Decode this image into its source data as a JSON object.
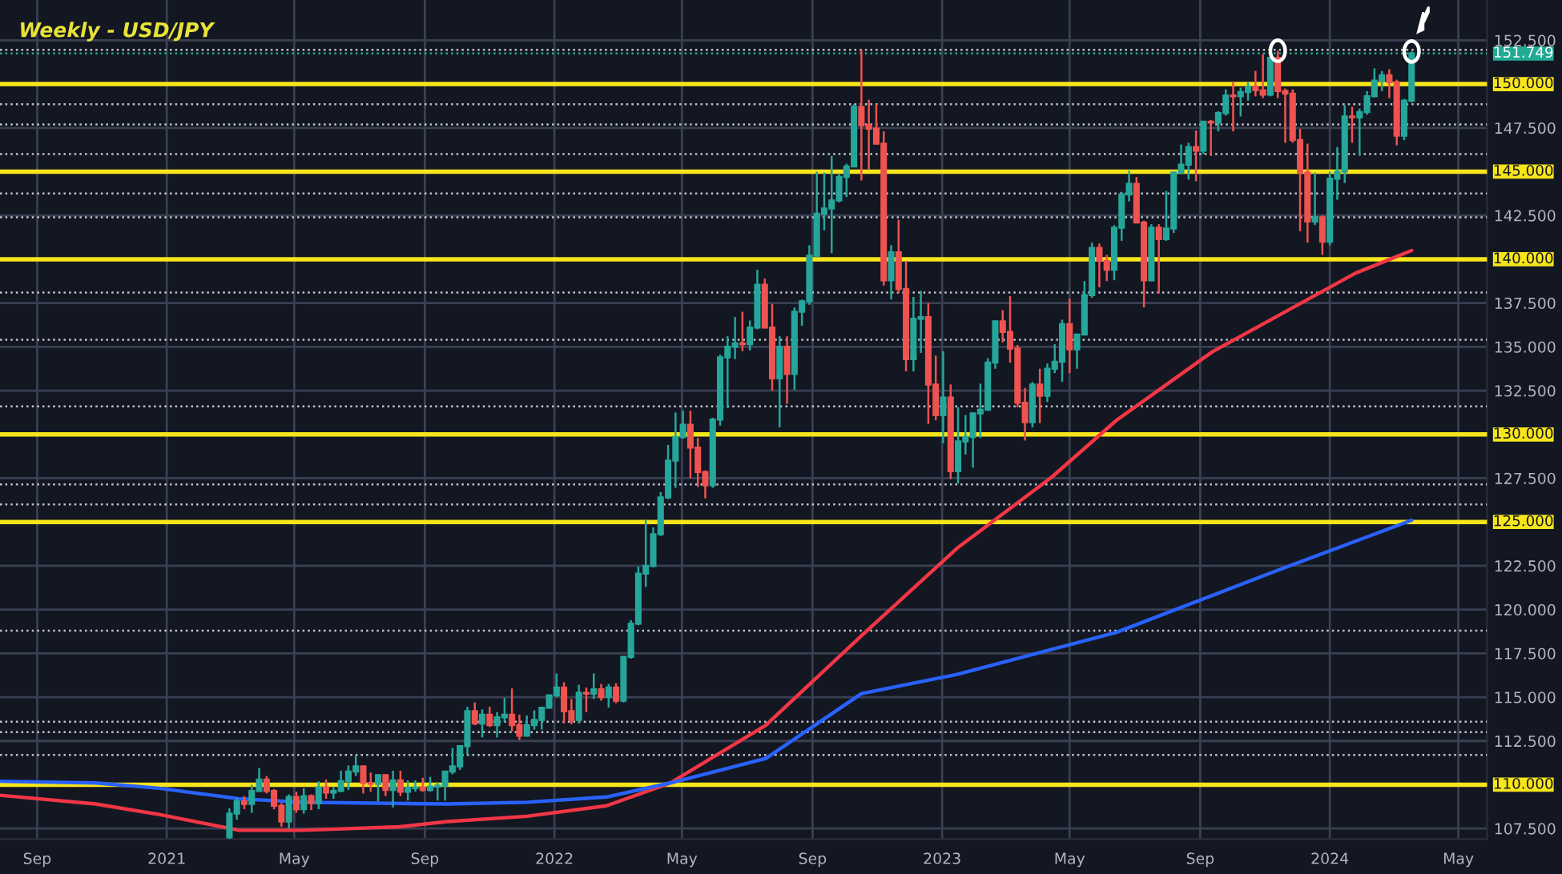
{
  "chart_data": {
    "type": "candlestick",
    "title": "Weekly - USD/JPY",
    "colors": [
      "#26a69a",
      "#26a69a",
      "#ef5350",
      "#26a69a",
      "#26a69a",
      "#ef5350",
      "#ef5350",
      "#ef5350",
      "#26a69a",
      "#ef5350",
      "#26a69a",
      "#ef5350",
      "#26a69a",
      "#ef5350",
      "#26a69a",
      "#26a69a",
      "#26a69a",
      "#26a69a",
      "#ef5350",
      "#ef5350",
      "#26a69a",
      "#ef5350",
      "#26a69a",
      "#ef5350",
      "#26a69a",
      "#26a69a",
      "#ef5350",
      "#26a69a",
      "#26a69a",
      "#26a69a",
      "#26a69a",
      "#26a69a",
      "#26a69a",
      "#ef5350",
      "#26a69a",
      "#ef5350",
      "#26a69a",
      "#26a69a",
      "#ef5350",
      "#ef5350",
      "#26a69a",
      "#26a69a",
      "#26a69a",
      "#26a69a",
      "#26a69a",
      "#ef5350",
      "#ef5350",
      "#26a69a",
      "#ef5350",
      "#26a69a",
      "#ef5350",
      "#26a69a",
      "#ef5350",
      "#26a69a",
      "#26a69a",
      "#26a69a",
      "#26a69a",
      "#26a69a",
      "#26a69a",
      "#26a69a",
      "#26a69a",
      "#26a69a",
      "#ef5350",
      "#ef5350",
      "#ef5350",
      "#26a69a",
      "#26a69a",
      "#26a69a",
      "#26a69a",
      "#ef5350",
      "#26a69a",
      "#26a69a",
      "#ef5350",
      "#ef5350",
      "#26a69a",
      "#ef5350",
      "#26a69a",
      "#26a69a",
      "#26a69a",
      "#26a69a",
      "#26a69a",
      "#26a69a",
      "#26a69a",
      "#26a69a",
      "#26a69a",
      "#ef5350",
      "#ef5350",
      "#ef5350",
      "#ef5350",
      "#26a69a",
      "#ef5350",
      "#ef5350",
      "#26a69a",
      "#26a69a",
      "#ef5350",
      "#ef5350",
      "#26a69a",
      "#ef5350",
      "#26a69a",
      "#26a69a",
      "#26a69a",
      "#26a69a",
      "#26a69a",
      "#26a69a",
      "#ef5350",
      "#ef5350",
      "#ef5350",
      "#ef5350",
      "#26a69a",
      "#ef5350",
      "#26a69a",
      "#26a69a",
      "#26a69a",
      "#ef5350",
      "#26a69a",
      "#26a69a",
      "#26a69a",
      "#ef5350",
      "#ef5350",
      "#26a69a",
      "#26a69a",
      "#26a69a",
      "#ef5350",
      "#ef5350",
      "#26a69a",
      "#ef5350",
      "#26a69a",
      "#26a69a",
      "#26a69a",
      "#26a69a",
      "#ef5350",
      "#26a69a",
      "#ef5350",
      "#26a69a",
      "#26a69a",
      "#ef5350",
      "#26a69a",
      "#26a69a",
      "#ef5350",
      "#ef5350",
      "#26a69a",
      "#ef5350",
      "#ef5350",
      "#ef5350",
      "#ef5350",
      "#ef5350",
      "#26a69a",
      "#ef5350",
      "#26a69a",
      "#26a69a",
      "#26a69a",
      "#ef5350",
      "#26a69a",
      "#26a69a",
      "#26a69a",
      "#26a69a",
      "#ef5350",
      "#ef5350",
      "#26a69a",
      "#26a69a"
    ],
    "x": [
      "2021-03-01",
      "2021-03-08",
      "2021-03-15",
      "2021-03-22",
      "2021-03-29",
      "2021-04-05",
      "2021-04-12",
      "2021-04-19",
      "2021-04-26",
      "2021-05-03",
      "2021-05-10",
      "2021-05-17",
      "2021-05-24",
      "2021-05-31",
      "2021-06-07",
      "2021-06-14",
      "2021-06-21",
      "2021-06-28",
      "2021-07-05",
      "2021-07-12",
      "2021-07-19",
      "2021-07-26",
      "2021-08-02",
      "2021-08-09",
      "2021-08-16",
      "2021-08-23",
      "2021-08-30",
      "2021-09-06",
      "2021-09-13",
      "2021-09-20",
      "2021-09-27",
      "2021-10-04",
      "2021-10-11",
      "2021-10-18",
      "2021-10-25",
      "2021-11-01",
      "2021-11-08",
      "2021-11-15",
      "2021-11-22",
      "2021-11-29",
      "2021-12-06",
      "2021-12-13",
      "2021-12-20",
      "2021-12-27",
      "2022-01-03",
      "2022-01-10",
      "2022-01-17",
      "2022-01-24",
      "2022-01-31",
      "2022-02-07",
      "2022-02-14",
      "2022-02-21",
      "2022-02-28",
      "2022-03-07",
      "2022-03-14",
      "2022-03-21",
      "2022-03-28",
      "2022-04-04",
      "2022-04-11",
      "2022-04-18",
      "2022-04-25",
      "2022-05-02",
      "2022-05-09",
      "2022-05-16",
      "2022-05-23",
      "2022-05-30",
      "2022-06-06",
      "2022-06-13",
      "2022-06-20",
      "2022-06-27",
      "2022-07-04",
      "2022-07-11",
      "2022-07-18",
      "2022-07-25",
      "2022-08-01",
      "2022-08-08",
      "2022-08-15",
      "2022-08-22",
      "2022-08-29",
      "2022-09-05",
      "2022-09-12",
      "2022-09-19",
      "2022-09-26",
      "2022-10-03",
      "2022-10-10",
      "2022-10-17",
      "2022-10-24",
      "2022-10-31",
      "2022-11-07",
      "2022-11-14",
      "2022-11-21",
      "2022-11-28",
      "2022-12-05",
      "2022-12-12",
      "2022-12-19",
      "2022-12-26",
      "2023-01-02",
      "2023-01-09",
      "2023-01-16",
      "2023-01-23",
      "2023-01-30",
      "2023-02-06",
      "2023-02-13",
      "2023-02-20",
      "2023-02-27",
      "2023-03-06",
      "2023-03-13",
      "2023-03-20",
      "2023-03-27",
      "2023-04-03",
      "2023-04-10",
      "2023-04-17",
      "2023-04-24",
      "2023-05-01",
      "2023-05-08",
      "2023-05-15",
      "2023-05-22",
      "2023-05-29",
      "2023-06-05",
      "2023-06-12",
      "2023-06-19",
      "2023-06-26",
      "2023-07-03",
      "2023-07-10",
      "2023-07-17",
      "2023-07-24",
      "2023-07-31",
      "2023-08-07",
      "2023-08-14",
      "2023-08-21",
      "2023-08-28",
      "2023-09-04",
      "2023-09-11",
      "2023-09-18",
      "2023-09-25",
      "2023-10-02",
      "2023-10-09",
      "2023-10-16",
      "2023-10-23",
      "2023-10-30",
      "2023-11-06",
      "2023-11-13",
      "2023-11-20",
      "2023-11-27",
      "2023-12-04",
      "2023-12-11",
      "2023-12-18",
      "2023-12-25",
      "2024-01-01",
      "2024-01-08",
      "2024-01-15",
      "2024-01-22",
      "2024-01-29",
      "2024-02-05",
      "2024-02-12",
      "2024-02-19",
      "2024-02-26",
      "2024-03-04",
      "2024-03-11",
      "2024-03-18"
    ],
    "ohlc": [
      [
        107.0,
        108.65,
        106.9,
        108.35
      ],
      [
        108.35,
        109.25,
        108.0,
        109.05
      ],
      [
        109.05,
        109.35,
        108.6,
        108.9
      ],
      [
        108.9,
        110.0,
        108.4,
        109.65
      ],
      [
        109.65,
        110.95,
        109.6,
        110.3
      ],
      [
        110.3,
        110.5,
        109.5,
        109.65
      ],
      [
        109.65,
        109.75,
        108.6,
        108.8
      ],
      [
        108.8,
        108.95,
        107.6,
        107.9
      ],
      [
        107.9,
        109.45,
        107.5,
        109.3
      ],
      [
        109.3,
        109.6,
        108.4,
        108.6
      ],
      [
        108.6,
        109.8,
        108.35,
        109.35
      ],
      [
        109.35,
        109.45,
        108.55,
        108.95
      ],
      [
        108.95,
        110.2,
        108.6,
        109.85
      ],
      [
        109.85,
        110.3,
        109.2,
        109.55
      ],
      [
        109.55,
        109.85,
        109.2,
        109.65
      ],
      [
        109.65,
        110.8,
        109.6,
        110.2
      ],
      [
        110.2,
        111.1,
        109.7,
        110.75
      ],
      [
        110.75,
        111.65,
        110.5,
        111.05
      ],
      [
        111.05,
        111.05,
        109.5,
        110.1
      ],
      [
        110.1,
        110.7,
        109.6,
        110.05
      ],
      [
        110.05,
        110.6,
        109.05,
        110.55
      ],
      [
        110.55,
        110.6,
        109.35,
        109.7
      ],
      [
        109.7,
        110.8,
        108.7,
        110.25
      ],
      [
        110.25,
        110.8,
        109.35,
        109.6
      ],
      [
        109.6,
        110.25,
        109.1,
        109.8
      ],
      [
        109.8,
        110.25,
        109.6,
        109.85
      ],
      [
        109.85,
        110.4,
        109.6,
        109.7
      ],
      [
        109.7,
        110.45,
        109.6,
        109.9
      ],
      [
        109.9,
        110.15,
        109.1,
        109.95
      ],
      [
        109.95,
        110.8,
        109.1,
        110.75
      ],
      [
        110.75,
        112.1,
        110.6,
        111.05
      ],
      [
        111.05,
        112.25,
        110.85,
        112.2
      ],
      [
        112.2,
        114.45,
        111.7,
        114.2
      ],
      [
        114.2,
        114.7,
        113.4,
        113.5
      ],
      [
        113.5,
        114.3,
        112.7,
        114.0
      ],
      [
        114.0,
        114.45,
        113.3,
        113.4
      ],
      [
        113.4,
        114.15,
        112.7,
        113.85
      ],
      [
        113.85,
        114.95,
        113.6,
        114.0
      ],
      [
        114.0,
        115.5,
        113.05,
        113.4
      ],
      [
        113.4,
        114.0,
        112.55,
        112.8
      ],
      [
        112.8,
        113.95,
        112.75,
        113.4
      ],
      [
        113.4,
        114.25,
        113.15,
        113.7
      ],
      [
        113.7,
        114.45,
        113.15,
        114.4
      ],
      [
        114.4,
        115.1,
        114.35,
        115.1
      ],
      [
        115.1,
        116.35,
        115.0,
        115.55
      ],
      [
        115.55,
        115.85,
        113.5,
        114.2
      ],
      [
        114.2,
        114.9,
        113.45,
        113.7
      ],
      [
        113.7,
        115.7,
        113.5,
        115.25
      ],
      [
        115.25,
        115.55,
        114.15,
        115.2
      ],
      [
        115.2,
        116.35,
        114.9,
        115.45
      ],
      [
        115.45,
        115.75,
        114.8,
        115.0
      ],
      [
        115.0,
        115.75,
        114.4,
        115.55
      ],
      [
        115.55,
        115.8,
        114.65,
        114.8
      ],
      [
        114.8,
        117.35,
        114.7,
        117.3
      ],
      [
        117.3,
        119.4,
        117.2,
        119.2
      ],
      [
        119.2,
        122.45,
        119.1,
        122.05
      ],
      [
        122.05,
        125.1,
        121.3,
        122.5
      ],
      [
        122.5,
        124.7,
        122.4,
        124.3
      ],
      [
        124.3,
        126.7,
        124.2,
        126.4
      ],
      [
        126.4,
        129.4,
        126.3,
        128.5
      ],
      [
        128.5,
        131.25,
        126.95,
        129.85
      ],
      [
        129.85,
        131.35,
        129.75,
        130.55
      ],
      [
        130.55,
        131.35,
        127.5,
        129.25
      ],
      [
        129.25,
        129.8,
        127.0,
        127.85
      ],
      [
        127.85,
        127.95,
        126.35,
        127.1
      ],
      [
        127.1,
        130.95,
        126.95,
        130.85
      ],
      [
        130.85,
        134.55,
        130.5,
        134.4
      ],
      [
        134.4,
        135.6,
        131.5,
        135.0
      ],
      [
        135.0,
        136.7,
        134.3,
        135.2
      ],
      [
        135.2,
        137.0,
        134.75,
        135.15
      ],
      [
        135.15,
        136.5,
        134.8,
        136.1
      ],
      [
        136.1,
        139.4,
        136.0,
        138.55
      ],
      [
        138.55,
        138.9,
        136.05,
        136.1
      ],
      [
        136.1,
        137.45,
        132.5,
        133.2
      ],
      [
        133.2,
        135.6,
        130.4,
        135.0
      ],
      [
        135.0,
        135.6,
        131.75,
        133.45
      ],
      [
        133.45,
        137.25,
        132.55,
        137.0
      ],
      [
        137.0,
        137.7,
        136.2,
        137.6
      ],
      [
        137.6,
        140.8,
        137.4,
        140.2
      ],
      [
        140.2,
        145.0,
        140.1,
        142.6
      ],
      [
        142.6,
        144.95,
        141.65,
        142.9
      ],
      [
        142.9,
        145.9,
        140.35,
        143.35
      ],
      [
        143.35,
        144.9,
        143.25,
        144.7
      ],
      [
        144.7,
        145.45,
        143.55,
        145.3
      ],
      [
        145.3,
        148.85,
        145.25,
        148.7
      ],
      [
        148.7,
        151.95,
        144.5,
        147.65
      ],
      [
        147.65,
        149.1,
        145.1,
        147.45
      ],
      [
        147.45,
        148.85,
        146.55,
        146.6
      ],
      [
        146.6,
        147.3,
        138.5,
        138.8
      ],
      [
        138.8,
        140.8,
        137.7,
        140.4
      ],
      [
        140.4,
        142.25,
        138.05,
        138.3
      ],
      [
        138.3,
        139.9,
        133.6,
        134.3
      ],
      [
        134.3,
        137.85,
        133.6,
        136.6
      ],
      [
        136.6,
        138.2,
        134.65,
        136.7
      ],
      [
        136.7,
        137.5,
        130.6,
        132.85
      ],
      [
        132.85,
        134.5,
        130.8,
        131.1
      ],
      [
        131.1,
        134.75,
        129.5,
        132.1
      ],
      [
        132.1,
        132.85,
        127.45,
        127.9
      ],
      [
        127.9,
        131.55,
        127.2,
        129.6
      ],
      [
        129.6,
        131.1,
        128.85,
        129.85
      ],
      [
        129.85,
        131.25,
        128.1,
        131.2
      ],
      [
        131.2,
        132.9,
        129.8,
        131.4
      ],
      [
        131.4,
        134.35,
        131.35,
        134.1
      ],
      [
        134.1,
        136.5,
        133.75,
        136.45
      ],
      [
        136.45,
        137.1,
        135.25,
        135.85
      ],
      [
        135.85,
        137.9,
        134.1,
        134.9
      ],
      [
        134.9,
        135.1,
        131.55,
        131.8
      ],
      [
        131.8,
        132.65,
        129.65,
        130.7
      ],
      [
        130.7,
        133.0,
        130.4,
        132.85
      ],
      [
        132.85,
        133.75,
        130.65,
        132.2
      ],
      [
        132.2,
        134.05,
        131.85,
        133.75
      ],
      [
        133.75,
        135.15,
        133.5,
        134.15
      ],
      [
        134.15,
        136.55,
        133.0,
        136.3
      ],
      [
        136.3,
        137.75,
        133.5,
        134.85
      ],
      [
        134.85,
        135.75,
        133.75,
        135.7
      ],
      [
        135.7,
        138.75,
        135.65,
        137.95
      ],
      [
        137.95,
        140.95,
        137.8,
        140.65
      ],
      [
        140.65,
        140.9,
        138.4,
        139.9
      ],
      [
        139.9,
        140.25,
        138.75,
        139.4
      ],
      [
        139.4,
        141.95,
        138.8,
        141.8
      ],
      [
        141.8,
        143.85,
        141.05,
        143.7
      ],
      [
        143.7,
        145.05,
        143.3,
        144.3
      ],
      [
        144.3,
        144.7,
        142.05,
        142.1
      ],
      [
        142.1,
        142.2,
        137.25,
        138.8
      ],
      [
        138.8,
        142.0,
        138.75,
        141.8
      ],
      [
        141.8,
        142.0,
        138.05,
        141.15
      ],
      [
        141.15,
        143.9,
        141.05,
        141.75
      ],
      [
        141.75,
        145.0,
        141.5,
        144.95
      ],
      [
        144.95,
        146.55,
        144.85,
        145.4
      ],
      [
        145.4,
        146.65,
        144.55,
        146.4
      ],
      [
        146.4,
        147.35,
        144.45,
        146.2
      ],
      [
        146.2,
        147.9,
        146.0,
        147.85
      ],
      [
        147.85,
        147.95,
        145.9,
        147.8
      ],
      [
        147.8,
        148.45,
        147.3,
        148.35
      ],
      [
        148.35,
        149.7,
        148.2,
        149.35
      ],
      [
        149.35,
        150.15,
        147.3,
        149.3
      ],
      [
        149.3,
        149.8,
        148.15,
        149.55
      ],
      [
        149.55,
        150.1,
        149.05,
        149.85
      ],
      [
        149.85,
        150.75,
        149.3,
        149.65
      ],
      [
        149.65,
        151.7,
        149.2,
        149.4
      ],
      [
        149.4,
        151.6,
        149.3,
        151.5
      ],
      [
        151.5,
        151.9,
        149.2,
        149.6
      ],
      [
        149.6,
        149.75,
        146.65,
        149.45
      ],
      [
        149.45,
        149.7,
        146.65,
        146.8
      ],
      [
        146.8,
        147.45,
        141.6,
        144.95
      ],
      [
        144.95,
        146.6,
        140.95,
        142.15
      ],
      [
        142.15,
        144.95,
        141.95,
        142.4
      ],
      [
        142.4,
        142.5,
        140.25,
        141.0
      ],
      [
        141.0,
        145.0,
        140.8,
        144.6
      ],
      [
        144.6,
        146.4,
        143.4,
        145.0
      ],
      [
        145.0,
        148.8,
        144.35,
        148.15
      ],
      [
        148.15,
        148.7,
        146.65,
        148.1
      ],
      [
        148.1,
        148.6,
        145.9,
        148.4
      ],
      [
        148.4,
        149.6,
        148.25,
        149.3
      ],
      [
        149.3,
        150.9,
        149.25,
        150.2
      ],
      [
        150.2,
        150.75,
        149.6,
        150.5
      ],
      [
        150.5,
        150.85,
        149.2,
        150.1
      ],
      [
        150.1,
        150.25,
        146.5,
        147.05
      ],
      [
        147.05,
        149.15,
        146.8,
        149.05
      ],
      [
        149.05,
        151.86,
        148.95,
        151.749
      ]
    ],
    "series": [
      {
        "type": "line",
        "color": "#f23645",
        "x": [
          "2020-07-28",
          "2020-10-26",
          "2020-12-25",
          "2021-03-10",
          "2021-05-09",
          "2021-08-08",
          "2021-09-22",
          "2021-12-06",
          "2022-02-19",
          "2022-04-20",
          "2022-07-19",
          "2022-10-17",
          "2023-01-15",
          "2023-04-15",
          "2023-06-14",
          "2023-09-12",
          "2023-11-11",
          "2024-01-25",
          "2024-03-18"
        ],
        "values": [
          109.4,
          108.9,
          108.3,
          107.4,
          107.4,
          107.6,
          107.9,
          108.2,
          108.8,
          110.1,
          113.4,
          118.5,
          123.5,
          127.6,
          130.8,
          134.7,
          136.7,
          139.2,
          140.5
        ]
      },
      {
        "type": "line",
        "color": "#2962ff",
        "x": [
          "2020-07-28",
          "2020-10-26",
          "2020-12-25",
          "2021-03-10",
          "2021-05-09",
          "2021-09-22",
          "2021-12-06",
          "2022-02-19",
          "2022-04-20",
          "2022-07-19",
          "2022-10-17",
          "2023-01-15",
          "2023-06-14",
          "2023-11-11",
          "2024-03-18"
        ],
        "values": [
          110.2,
          110.1,
          109.8,
          109.2,
          109.0,
          108.9,
          109.0,
          109.3,
          110.1,
          111.5,
          115.2,
          116.3,
          118.7,
          122.2,
          125.1
        ]
      }
    ],
    "xlim": [
      "2020-07-28",
      "2024-05-28"
    ],
    "ylim": [
      106.9,
      154.8
    ],
    "xticks": [
      {
        "value": "2020-09-01",
        "label": "Sep"
      },
      {
        "value": "2021-01-01",
        "label": "2021"
      },
      {
        "value": "2021-05-01",
        "label": "May"
      },
      {
        "value": "2021-09-01",
        "label": "Sep"
      },
      {
        "value": "2022-01-01",
        "label": "2022"
      },
      {
        "value": "2022-05-01",
        "label": "May"
      },
      {
        "value": "2022-09-01",
        "label": "Sep"
      },
      {
        "value": "2023-01-01",
        "label": "2023"
      },
      {
        "value": "2023-05-01",
        "label": "May"
      },
      {
        "value": "2023-09-01",
        "label": "Sep"
      },
      {
        "value": "2024-01-01",
        "label": "2024"
      },
      {
        "value": "2024-05-01",
        "label": "May"
      }
    ],
    "yticks": [
      {
        "value": 107.5,
        "label": "107.500"
      },
      {
        "value": 112.5,
        "label": "112.500"
      },
      {
        "value": 115,
        "label": "115.000"
      },
      {
        "value": 117.5,
        "label": "117.500"
      },
      {
        "value": 120,
        "label": "120.000"
      },
      {
        "value": 122.5,
        "label": "122.500"
      },
      {
        "value": 127.5,
        "label": "127.500"
      },
      {
        "value": 132.5,
        "label": "132.500"
      },
      {
        "value": 135,
        "label": "135.000"
      },
      {
        "value": 137.5,
        "label": "137.500"
      },
      {
        "value": 142.5,
        "label": "142.500"
      },
      {
        "value": 147.5,
        "label": "147.500"
      },
      {
        "value": 152.5,
        "label": "152.500"
      }
    ],
    "grid": true,
    "ref_lines": [
      {
        "axis": "y",
        "value": 150,
        "label": "150.000",
        "color": "#f7e51b",
        "line_style": "solid"
      },
      {
        "axis": "y",
        "value": 145,
        "label": "145.000",
        "color": "#f7e51b",
        "line_style": "solid"
      },
      {
        "axis": "y",
        "value": 140,
        "label": "140.000",
        "color": "#f7e51b",
        "line_style": "solid"
      },
      {
        "axis": "y",
        "value": 130,
        "label": "130.000",
        "color": "#f7e51b",
        "line_style": "solid"
      },
      {
        "axis": "y",
        "value": 125,
        "label": "125.000",
        "color": "#f7e51b",
        "line_style": "solid"
      },
      {
        "axis": "y",
        "value": 110,
        "label": "110.000",
        "color": "#f7e51b",
        "line_style": "solid"
      },
      {
        "axis": "y",
        "value": 151.749,
        "label": "151.749",
        "color": "#22ab94",
        "line_style": "dotted"
      },
      {
        "axis": "y",
        "value": 151.95,
        "color": "#c0c3cc",
        "line_style": "dotted"
      },
      {
        "axis": "y",
        "value": 148.85,
        "color": "#c0c3cc",
        "line_style": "dotted"
      },
      {
        "axis": "y",
        "value": 147.7,
        "color": "#c0c3cc",
        "line_style": "dotted"
      },
      {
        "axis": "y",
        "value": 146.0,
        "color": "#c0c3cc",
        "line_style": "dotted"
      },
      {
        "axis": "y",
        "value": 143.75,
        "color": "#c0c3cc",
        "line_style": "dotted"
      },
      {
        "axis": "y",
        "value": 142.4,
        "color": "#c0c3cc",
        "line_style": "dotted"
      },
      {
        "axis": "y",
        "value": 138.1,
        "color": "#c0c3cc",
        "line_style": "dotted"
      },
      {
        "axis": "y",
        "value": 135.4,
        "color": "#c0c3cc",
        "line_style": "dotted"
      },
      {
        "axis": "y",
        "value": 131.6,
        "color": "#c0c3cc",
        "line_style": "dotted"
      },
      {
        "axis": "y",
        "value": 127.15,
        "color": "#c0c3cc",
        "line_style": "dotted"
      },
      {
        "axis": "y",
        "value": 126.0,
        "color": "#c0c3cc",
        "line_style": "dotted"
      },
      {
        "axis": "y",
        "value": 118.8,
        "color": "#c0c3cc",
        "line_style": "dotted"
      },
      {
        "axis": "y",
        "value": 113.6,
        "color": "#c0c3cc",
        "line_style": "dotted"
      },
      {
        "axis": "y",
        "value": 113.0,
        "color": "#c0c3cc",
        "line_style": "dotted"
      },
      {
        "axis": "y",
        "value": 111.7,
        "color": "#c0c3cc",
        "line_style": "dotted"
      }
    ]
  }
}
